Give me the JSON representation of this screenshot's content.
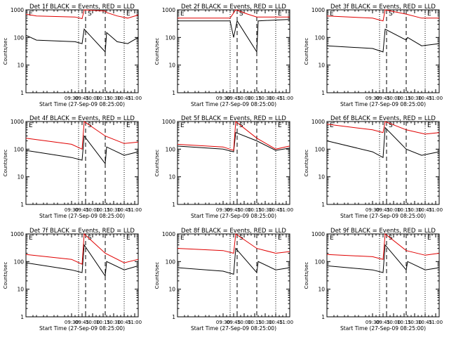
{
  "figure": {
    "common": {
      "xlabel": "Start Time (27-Sep-09 08:25:00)",
      "ylabel": "Counts/sec",
      "x_ticks": [
        "09:30",
        "09:45",
        "10:00",
        "10:15",
        "10:30",
        "10:45",
        "11:00"
      ],
      "y_ticks": [
        "1",
        "10",
        "100",
        "1000"
      ],
      "markers": [
        "E",
        "S",
        "E"
      ],
      "colors": {
        "events": "#000000",
        "lld": "#e00000",
        "axis": "#000000"
      }
    }
  },
  "chart_data": [
    {
      "type": "line",
      "title": "Det 1f BLACK = Events, RED = LLD",
      "xlim": [
        "08:25",
        "11:05"
      ],
      "ylim": [
        1,
        1000
      ],
      "yscale": "log",
      "vlines_dotted": [
        "09:40",
        "10:45"
      ],
      "vlines_dashed": [
        "09:50",
        "10:18"
      ],
      "series": [
        {
          "name": "BLACK = Events",
          "points": [
            [
              "08:25",
              120
            ],
            [
              "08:40",
              80
            ],
            [
              "09:35",
              70
            ],
            [
              "09:45",
              60
            ],
            [
              "09:48",
              200
            ],
            [
              "10:18",
              30
            ],
            [
              "10:20",
              150
            ],
            [
              "10:35",
              70
            ],
            [
              "10:50",
              60
            ],
            [
              "11:05",
              100
            ]
          ]
        },
        {
          "name": "RED = LLD",
          "points": [
            [
              "08:25",
              700
            ],
            [
              "08:40",
              600
            ],
            [
              "09:35",
              550
            ],
            [
              "09:45",
              480
            ],
            [
              "09:48",
              1000
            ],
            [
              "10:18",
              900
            ],
            [
              "10:20",
              800
            ],
            [
              "10:35",
              600
            ],
            [
              "10:50",
              500
            ],
            [
              "11:05",
              650
            ]
          ]
        }
      ]
    },
    {
      "type": "line",
      "title": "Det 2f BLACK = Events, RED = LLD",
      "xlim": [
        "08:25",
        "11:05"
      ],
      "ylim": [
        1,
        1000
      ],
      "yscale": "log",
      "vlines_dotted": [
        "09:40",
        "10:45"
      ],
      "vlines_dashed": [
        "09:50",
        "10:18"
      ],
      "series": [
        {
          "name": "BLACK = Events",
          "points": [
            [
              "08:25",
              400
            ],
            [
              "09:40",
              400
            ],
            [
              "09:45",
              100
            ],
            [
              "09:50",
              400
            ],
            [
              "10:18",
              30
            ],
            [
              "10:20",
              400
            ],
            [
              "11:05",
              450
            ]
          ]
        },
        {
          "name": "RED = LLD",
          "points": [
            [
              "08:25",
              500
            ],
            [
              "09:40",
              500
            ],
            [
              "09:48",
              1000
            ],
            [
              "10:05",
              700
            ],
            [
              "10:18",
              550
            ],
            [
              "11:05",
              550
            ]
          ]
        }
      ]
    },
    {
      "type": "line",
      "title": "Det 3f BLACK = Events, RED = LLD",
      "xlim": [
        "08:25",
        "11:05"
      ],
      "ylim": [
        1,
        1000
      ],
      "yscale": "log",
      "vlines_dotted": [
        "09:40",
        "10:45"
      ],
      "vlines_dashed": [
        "09:50",
        "10:18"
      ],
      "series": [
        {
          "name": "BLACK = Events",
          "points": [
            [
              "08:25",
              50
            ],
            [
              "09:30",
              40
            ],
            [
              "09:45",
              30
            ],
            [
              "09:48",
              200
            ],
            [
              "10:18",
              80
            ],
            [
              "10:20",
              100
            ],
            [
              "10:40",
              50
            ],
            [
              "11:05",
              60
            ]
          ]
        },
        {
          "name": "RED = LLD",
          "points": [
            [
              "08:25",
              600
            ],
            [
              "09:30",
              500
            ],
            [
              "09:45",
              400
            ],
            [
              "09:48",
              1000
            ],
            [
              "10:18",
              700
            ],
            [
              "10:40",
              500
            ],
            [
              "11:05",
              500
            ]
          ]
        }
      ]
    },
    {
      "type": "line",
      "title": "Det 4f BLACK = Events, RED = LLD",
      "xlim": [
        "08:25",
        "11:05"
      ],
      "ylim": [
        1,
        1000
      ],
      "yscale": "log",
      "vlines_dotted": [
        "09:40",
        "10:45"
      ],
      "vlines_dashed": [
        "09:50",
        "10:18"
      ],
      "series": [
        {
          "name": "BLACK = Events",
          "points": [
            [
              "08:25",
              90
            ],
            [
              "09:30",
              50
            ],
            [
              "09:45",
              40
            ],
            [
              "09:48",
              300
            ],
            [
              "10:18",
              30
            ],
            [
              "10:20",
              120
            ],
            [
              "10:45",
              60
            ],
            [
              "11:05",
              80
            ]
          ]
        },
        {
          "name": "RED = LLD",
          "points": [
            [
              "08:25",
              250
            ],
            [
              "09:30",
              150
            ],
            [
              "09:45",
              100
            ],
            [
              "09:48",
              1000
            ],
            [
              "10:18",
              300
            ],
            [
              "10:45",
              160
            ],
            [
              "11:05",
              180
            ]
          ]
        }
      ]
    },
    {
      "type": "line",
      "title": "Det 5f BLACK = Events, RED = LLD",
      "xlim": [
        "08:25",
        "11:05"
      ],
      "ylim": [
        1,
        1000
      ],
      "yscale": "log",
      "vlines_dotted": [
        "09:40",
        "10:45"
      ],
      "vlines_dashed": [
        "09:50",
        "10:18"
      ],
      "series": [
        {
          "name": "BLACK = Events",
          "points": [
            [
              "08:25",
              130
            ],
            [
              "09:30",
              100
            ],
            [
              "09:45",
              80
            ],
            [
              "09:48",
              400
            ],
            [
              "10:18",
              200
            ],
            [
              "10:45",
              90
            ],
            [
              "11:05",
              110
            ]
          ]
        },
        {
          "name": "RED = LLD",
          "points": [
            [
              "08:25",
              150
            ],
            [
              "09:30",
              120
            ],
            [
              "09:45",
              90
            ],
            [
              "09:48",
              1000
            ],
            [
              "10:18",
              250
            ],
            [
              "10:45",
              100
            ],
            [
              "11:05",
              130
            ]
          ]
        }
      ]
    },
    {
      "type": "line",
      "title": "Det 6f BLACK = Events, RED = LLD",
      "xlim": [
        "08:25",
        "11:05"
      ],
      "ylim": [
        1,
        1000
      ],
      "yscale": "log",
      "vlines_dotted": [
        "09:40",
        "10:45"
      ],
      "vlines_dashed": [
        "09:50",
        "10:18"
      ],
      "series": [
        {
          "name": "BLACK = Events",
          "points": [
            [
              "08:25",
              200
            ],
            [
              "09:30",
              80
            ],
            [
              "09:45",
              50
            ],
            [
              "09:48",
              600
            ],
            [
              "10:18",
              100
            ],
            [
              "10:40",
              60
            ],
            [
              "11:05",
              80
            ]
          ]
        },
        {
          "name": "RED = LLD",
          "points": [
            [
              "08:25",
              800
            ],
            [
              "09:30",
              500
            ],
            [
              "09:45",
              400
            ],
            [
              "09:48",
              1000
            ],
            [
              "10:18",
              500
            ],
            [
              "10:45",
              350
            ],
            [
              "11:05",
              400
            ]
          ]
        }
      ]
    },
    {
      "type": "line",
      "title": "Det 7f BLACK = Events, RED = LLD",
      "xlim": [
        "08:25",
        "11:05"
      ],
      "ylim": [
        1,
        1000
      ],
      "yscale": "log",
      "vlines_dotted": [
        "09:40",
        "10:45"
      ],
      "vlines_dashed": [
        "09:50",
        "10:18"
      ],
      "series": [
        {
          "name": "BLACK = Events",
          "points": [
            [
              "08:25",
              90
            ],
            [
              "09:30",
              50
            ],
            [
              "09:45",
              40
            ],
            [
              "09:48",
              400
            ],
            [
              "10:18",
              30
            ],
            [
              "10:20",
              100
            ],
            [
              "10:45",
              50
            ],
            [
              "11:05",
              70
            ]
          ]
        },
        {
          "name": "RED = LLD",
          "points": [
            [
              "08:25",
              180
            ],
            [
              "09:30",
              120
            ],
            [
              "09:45",
              80
            ],
            [
              "09:48",
              1000
            ],
            [
              "10:18",
              200
            ],
            [
              "10:45",
              90
            ],
            [
              "11:05",
              120
            ]
          ]
        }
      ]
    },
    {
      "type": "line",
      "title": "Det 8f BLACK = Events, RED = LLD",
      "xlim": [
        "08:25",
        "11:05"
      ],
      "ylim": [
        1,
        1000
      ],
      "yscale": "log",
      "vlines_dotted": [
        "09:40",
        "10:45"
      ],
      "vlines_dashed": [
        "09:50",
        "10:18"
      ],
      "series": [
        {
          "name": "BLACK = Events",
          "points": [
            [
              "08:25",
              60
            ],
            [
              "09:30",
              45
            ],
            [
              "09:45",
              35
            ],
            [
              "09:48",
              300
            ],
            [
              "10:18",
              40
            ],
            [
              "10:20",
              100
            ],
            [
              "10:45",
              50
            ],
            [
              "11:05",
              60
            ]
          ]
        },
        {
          "name": "RED = LLD",
          "points": [
            [
              "08:25",
              300
            ],
            [
              "09:30",
              250
            ],
            [
              "09:45",
              200
            ],
            [
              "09:48",
              1000
            ],
            [
              "10:18",
              300
            ],
            [
              "10:45",
              200
            ],
            [
              "11:05",
              230
            ]
          ]
        }
      ]
    },
    {
      "type": "line",
      "title": "Det 9f BLACK = Events, RED = LLD",
      "xlim": [
        "08:25",
        "11:05"
      ],
      "ylim": [
        1,
        1000
      ],
      "yscale": "log",
      "vlines_dotted": [
        "09:40",
        "10:45"
      ],
      "vlines_dashed": [
        "09:50",
        "10:18"
      ],
      "series": [
        {
          "name": "BLACK = Events",
          "points": [
            [
              "08:25",
              70
            ],
            [
              "09:30",
              50
            ],
            [
              "09:45",
              40
            ],
            [
              "09:48",
              400
            ],
            [
              "10:18",
              50
            ],
            [
              "10:20",
              100
            ],
            [
              "10:45",
              50
            ],
            [
              "11:05",
              60
            ]
          ]
        },
        {
          "name": "RED = LLD",
          "points": [
            [
              "08:25",
              180
            ],
            [
              "09:30",
              150
            ],
            [
              "09:45",
              120
            ],
            [
              "09:48",
              1000
            ],
            [
              "10:18",
              250
            ],
            [
              "10:45",
              170
            ],
            [
              "11:05",
              200
            ]
          ]
        }
      ]
    }
  ]
}
